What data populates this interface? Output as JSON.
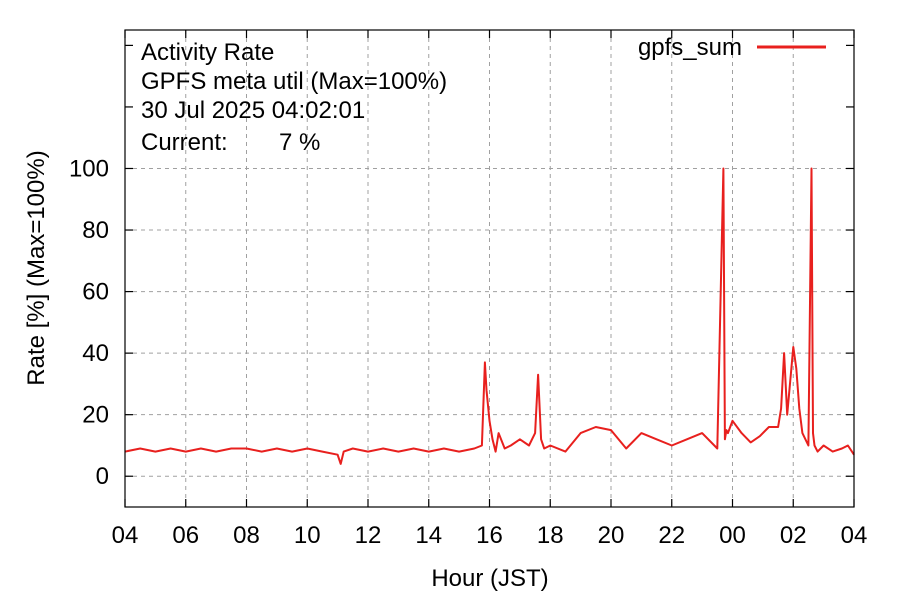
{
  "colors": {
    "series": "#e8201e",
    "current_value": "#e8201e",
    "grid": "#a0a0a0",
    "axis": "#000000"
  },
  "info": {
    "line1": "Activity Rate",
    "line2": "GPFS meta util (Max=100%)",
    "line3": "30 Jul 2025 04:02:01",
    "current_label": "Current:",
    "current_value": "7 %"
  },
  "chart_data": {
    "type": "line",
    "title": "Activity Rate",
    "subtitle": "GPFS meta util (Max=100%)",
    "xlabel": "Hour (JST)",
    "ylabel": "Rate [%]  (Max=100%)",
    "xlim_hours": [
      0,
      24
    ],
    "ylim": [
      -10,
      145
    ],
    "x_ticks": [
      {
        "h": 0,
        "label": "04"
      },
      {
        "h": 2,
        "label": "06"
      },
      {
        "h": 4,
        "label": "08"
      },
      {
        "h": 6,
        "label": "10"
      },
      {
        "h": 8,
        "label": "12"
      },
      {
        "h": 10,
        "label": "14"
      },
      {
        "h": 12,
        "label": "16"
      },
      {
        "h": 14,
        "label": "18"
      },
      {
        "h": 16,
        "label": "20"
      },
      {
        "h": 18,
        "label": "22"
      },
      {
        "h": 20,
        "label": "00"
      },
      {
        "h": 22,
        "label": "02"
      },
      {
        "h": 24,
        "label": "04"
      }
    ],
    "y_ticks": [
      0,
      20,
      40,
      60,
      80,
      100
    ],
    "grid": true,
    "legend_position": "top-right",
    "series": [
      {
        "name": "gpfs_sum",
        "x": [
          0.0,
          0.5,
          1.0,
          1.5,
          2.0,
          2.5,
          3.0,
          3.5,
          4.0,
          4.5,
          5.0,
          5.5,
          6.0,
          6.5,
          7.0,
          7.1,
          7.2,
          7.5,
          8.0,
          8.5,
          9.0,
          9.5,
          10.0,
          10.5,
          11.0,
          11.5,
          11.75,
          11.85,
          11.9,
          12.0,
          12.1,
          12.2,
          12.3,
          12.5,
          12.7,
          13.0,
          13.3,
          13.5,
          13.6,
          13.7,
          13.8,
          14.0,
          14.5,
          15.0,
          15.5,
          16.0,
          16.5,
          17.0,
          17.5,
          18.0,
          18.5,
          19.0,
          19.5,
          19.7,
          19.75,
          19.8,
          19.85,
          20.0,
          20.3,
          20.6,
          20.9,
          21.2,
          21.5,
          21.6,
          21.7,
          21.8,
          22.0,
          22.1,
          22.2,
          22.3,
          22.5,
          22.6,
          22.65,
          22.7,
          22.8,
          23.0,
          23.3,
          23.6,
          23.8,
          24.0
        ],
        "y": [
          8,
          9,
          8,
          9,
          8,
          9,
          8,
          9,
          9,
          8,
          9,
          8,
          9,
          8,
          7,
          4,
          8,
          9,
          8,
          9,
          8,
          9,
          8,
          9,
          8,
          9,
          10,
          37,
          28,
          18,
          12,
          8,
          14,
          9,
          10,
          12,
          10,
          14,
          33,
          12,
          9,
          10,
          8,
          14,
          16,
          15,
          9,
          14,
          12,
          10,
          12,
          14,
          9,
          100,
          12,
          15,
          14,
          18,
          14,
          11,
          13,
          16,
          16,
          22,
          40,
          20,
          42,
          35,
          22,
          14,
          10,
          100,
          14,
          10,
          8,
          10,
          8,
          9,
          10,
          7
        ]
      }
    ]
  }
}
